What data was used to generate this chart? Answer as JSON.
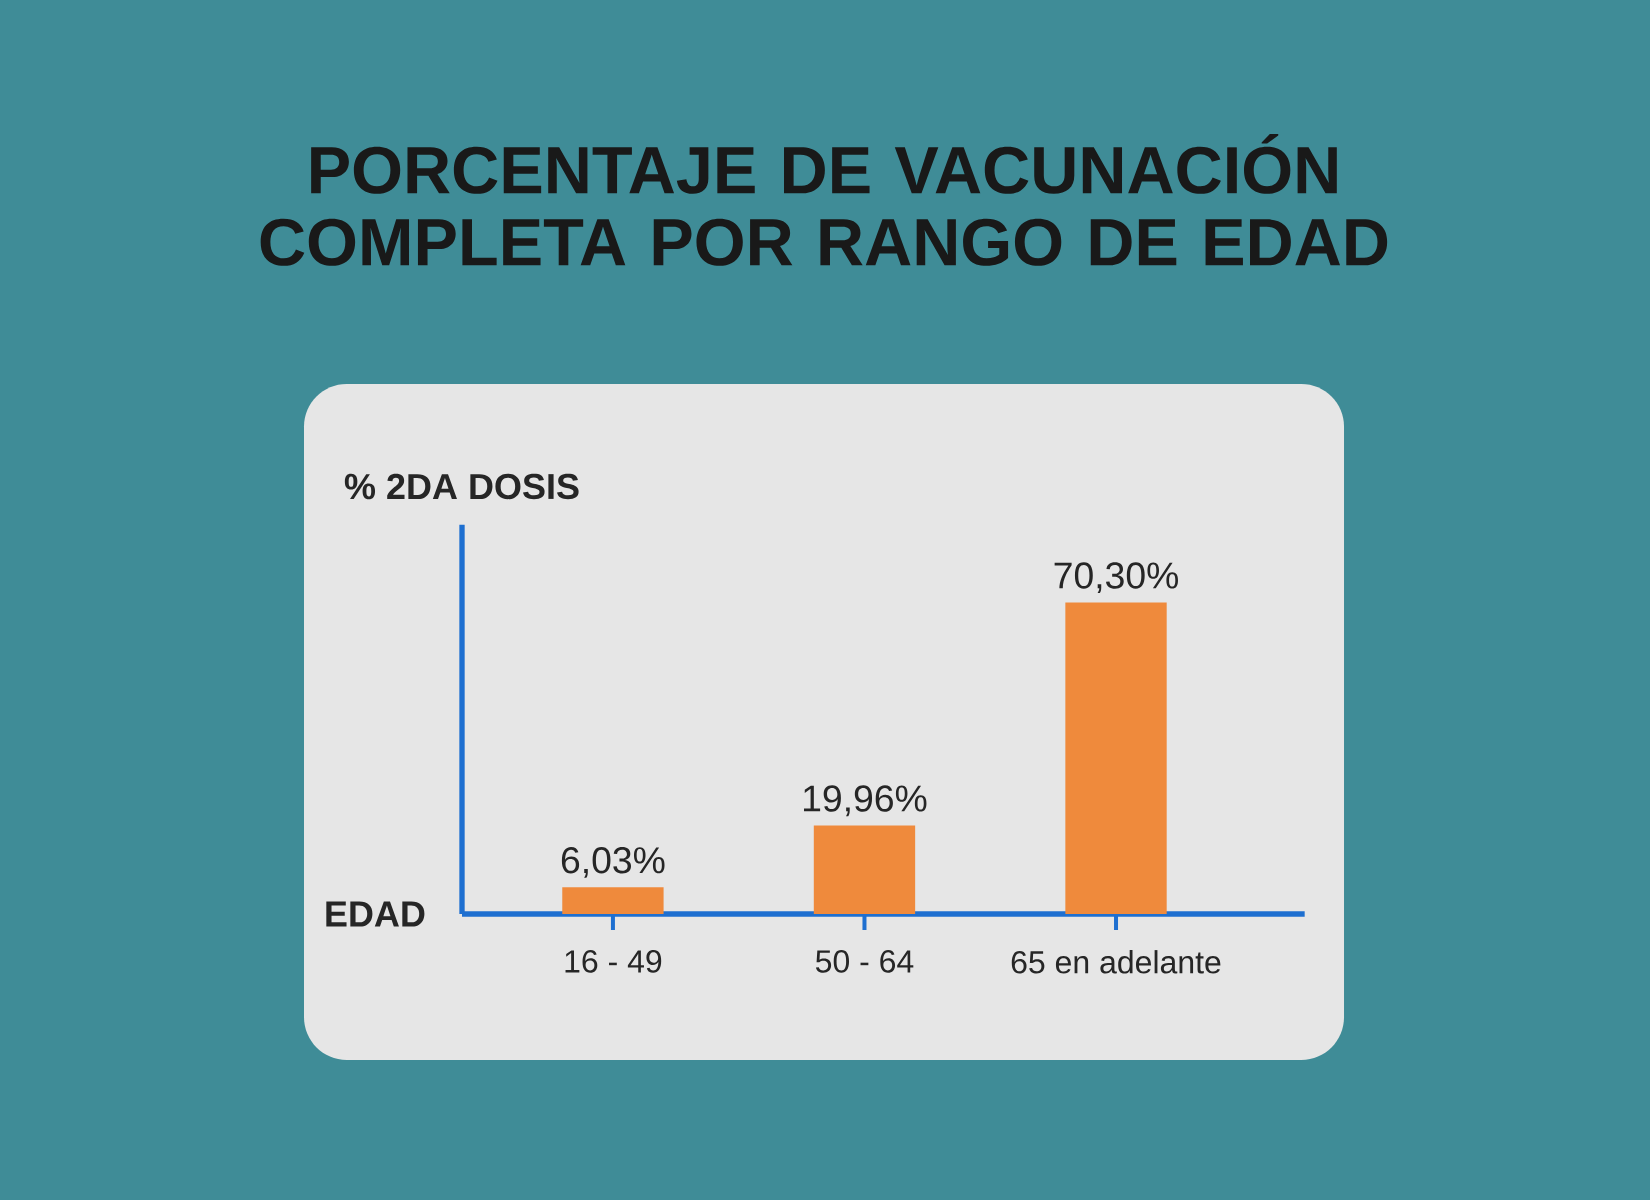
{
  "chart_data": {
    "type": "bar",
    "title": "PORCENTAJE DE VACUNACIÓN COMPLETA POR RANGO DE EDAD",
    "xlabel": "EDAD",
    "ylabel": "% 2DA DOSIS",
    "categories": [
      "16 - 49",
      "50 - 64",
      "65 en adelante"
    ],
    "values": [
      6.03,
      19.96,
      70.3
    ],
    "value_labels": [
      "6,03%",
      "19,96%",
      "70,30%"
    ],
    "color": "#ef8a3c"
  }
}
